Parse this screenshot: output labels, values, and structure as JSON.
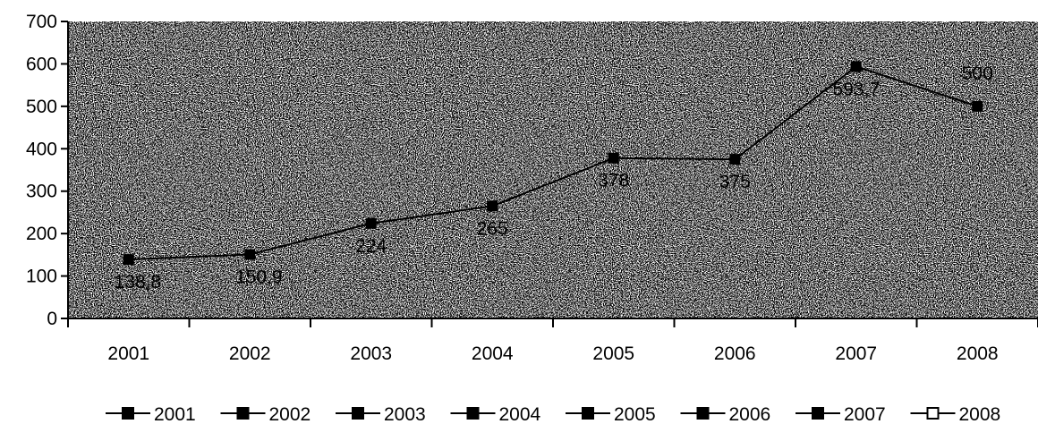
{
  "chart_data": {
    "type": "line",
    "categories": [
      "2001",
      "2002",
      "2003",
      "2004",
      "2005",
      "2006",
      "2007",
      "2008"
    ],
    "values": [
      138.8,
      150.9,
      224,
      265,
      378,
      375,
      593.7,
      500
    ],
    "data_labels": [
      "138,8",
      "150,9",
      "224",
      "265",
      "378",
      "375",
      "593,7",
      "500"
    ],
    "ylim": [
      0,
      700
    ],
    "yticks": [
      "0",
      "100",
      "200",
      "300",
      "400",
      "500",
      "600",
      "700"
    ],
    "legend": {
      "position": "bottom",
      "entries": [
        "2001",
        "2002",
        "2003",
        "2004",
        "2005",
        "2006",
        "2007",
        "2008"
      ]
    },
    "plot_background": "stippled-noise",
    "line_color": "#000000",
    "marker": "square"
  }
}
